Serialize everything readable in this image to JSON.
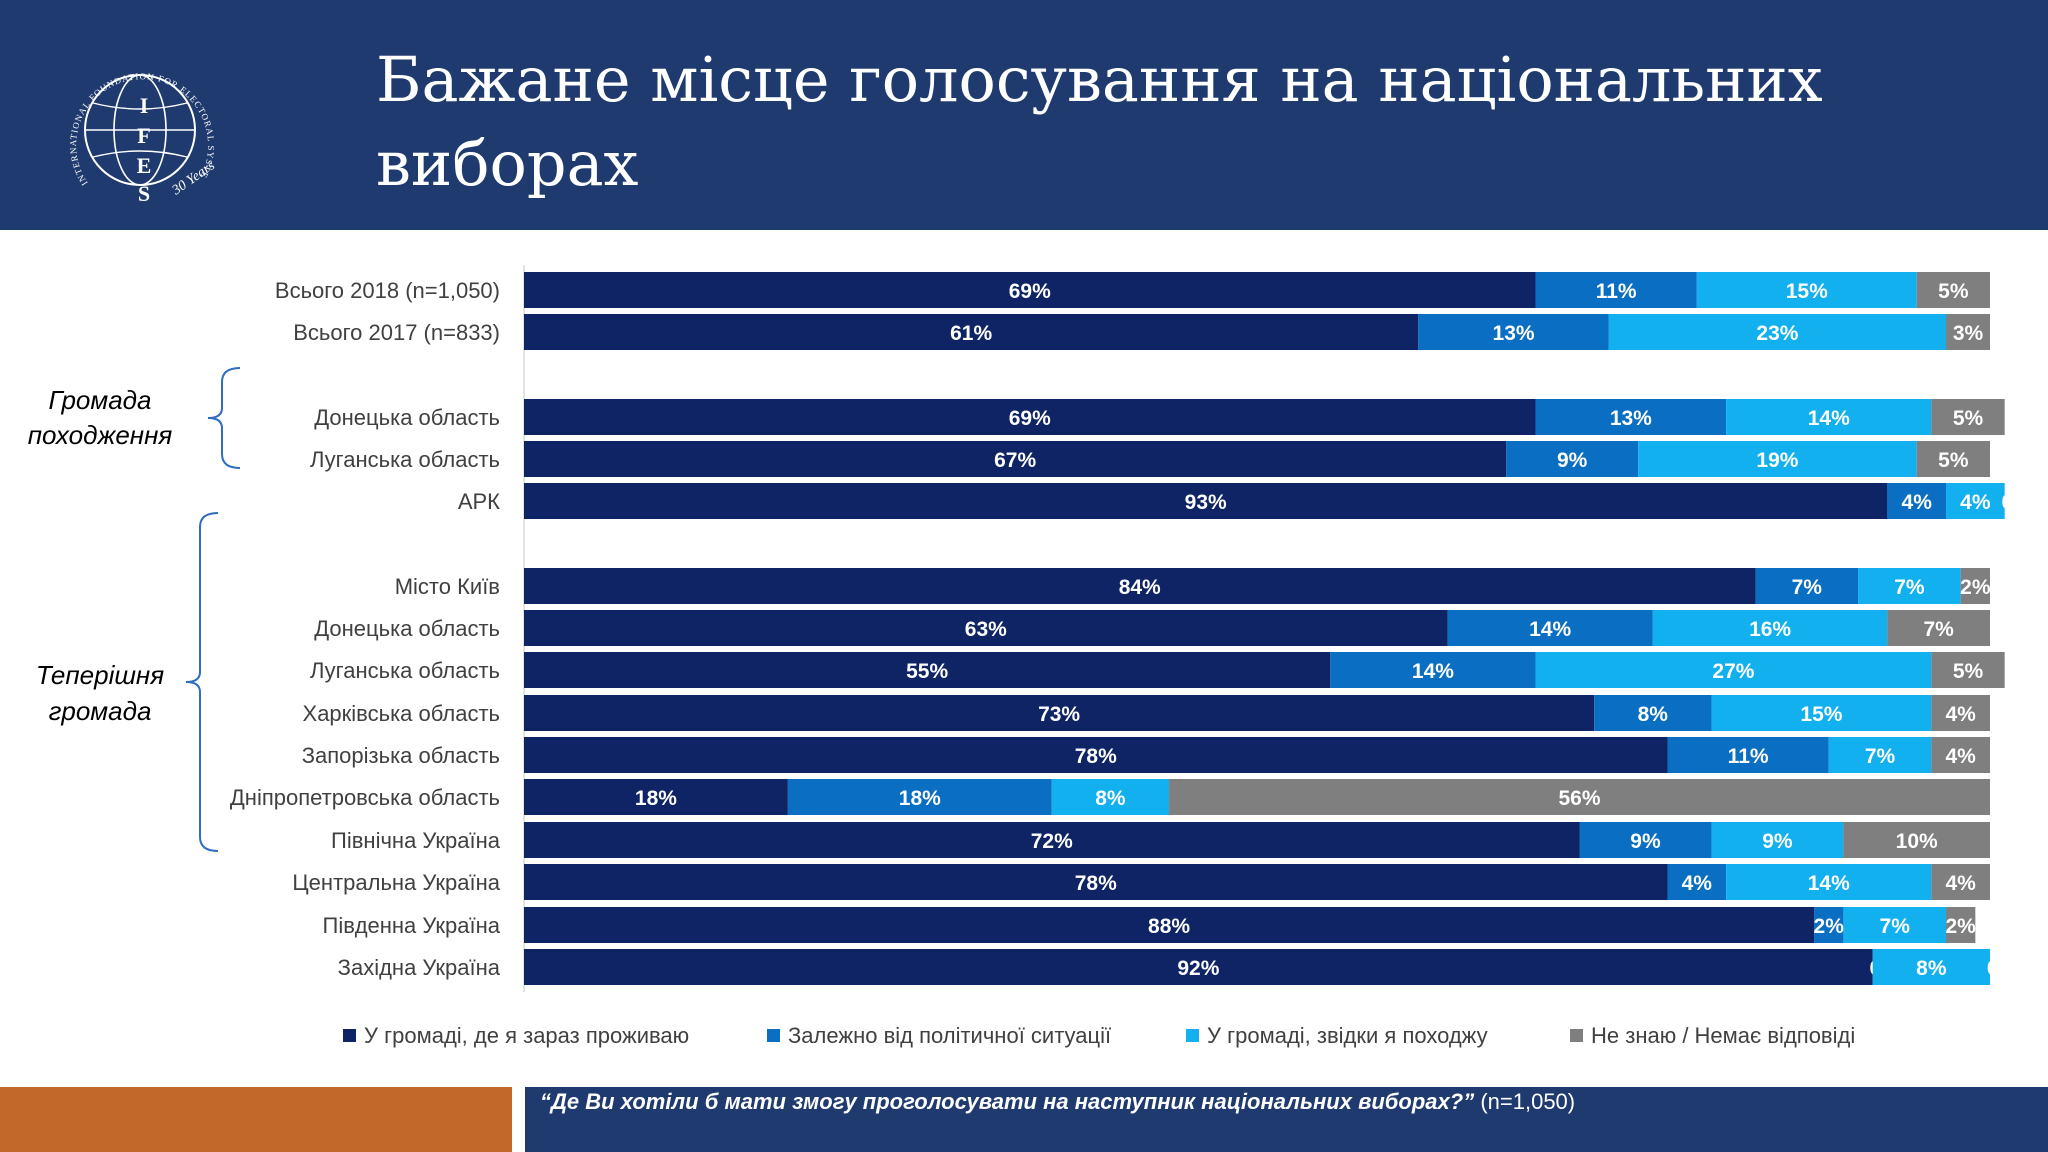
{
  "header": {
    "title_line1": "Бажане місце голосування на національних",
    "title_line2": "виборах",
    "logo_text": "IFES",
    "logo_arc": "INTERNATIONAL FOUNDATION FOR ELECTORAL SYSTEMS",
    "logo_years": "30 Years"
  },
  "groups": [
    {
      "label_line1": "Громада",
      "label_line2": "походження"
    },
    {
      "label_line1": "Теперішня",
      "label_line2": "громада"
    }
  ],
  "chart_data": {
    "type": "bar",
    "orientation": "horizontal",
    "stacked": true,
    "categories": [
      "Всього 2018 (n=1,050)",
      "Всього 2017 (n=833)",
      "Донецька область",
      "Луганська область",
      "АРК",
      "Місто Київ",
      "Донецька область",
      "Луганська область",
      "Харківська область",
      "Запорізька область",
      "Дніпропетровська область",
      "Північна Україна",
      "Центральна Україна",
      "Південна Україна",
      "Західна Україна"
    ],
    "series": [
      {
        "name": "У громаді, де я зараз проживаю",
        "color": "#0f2465",
        "values": [
          69,
          61,
          69,
          67,
          93,
          84,
          63,
          55,
          73,
          78,
          18,
          72,
          78,
          88,
          92
        ]
      },
      {
        "name": "Залежно від політичної ситуації",
        "color": "#0a6ec2",
        "values": [
          11,
          13,
          13,
          9,
          4,
          7,
          14,
          14,
          8,
          11,
          18,
          9,
          4,
          2,
          0
        ]
      },
      {
        "name": "У громаді, звідки я походжу",
        "color": "#12b0ee",
        "values": [
          15,
          23,
          14,
          19,
          4,
          7,
          16,
          27,
          15,
          7,
          8,
          9,
          14,
          7,
          8
        ]
      },
      {
        "name": "Не знаю / Немає відповіді",
        "color": "#7f7f7f",
        "values": [
          5,
          3,
          5,
          5,
          0,
          2,
          7,
          5,
          4,
          4,
          56,
          10,
          4,
          2,
          0
        ]
      }
    ],
    "value_suffix": "%",
    "legend_position": "bottom",
    "xlim": [
      0,
      100
    ]
  },
  "footer": {
    "question": "“Де Ви хотіли б мати змогу проголосувати на наступник національних виборах?”",
    "sample": " (n=1,050)"
  }
}
